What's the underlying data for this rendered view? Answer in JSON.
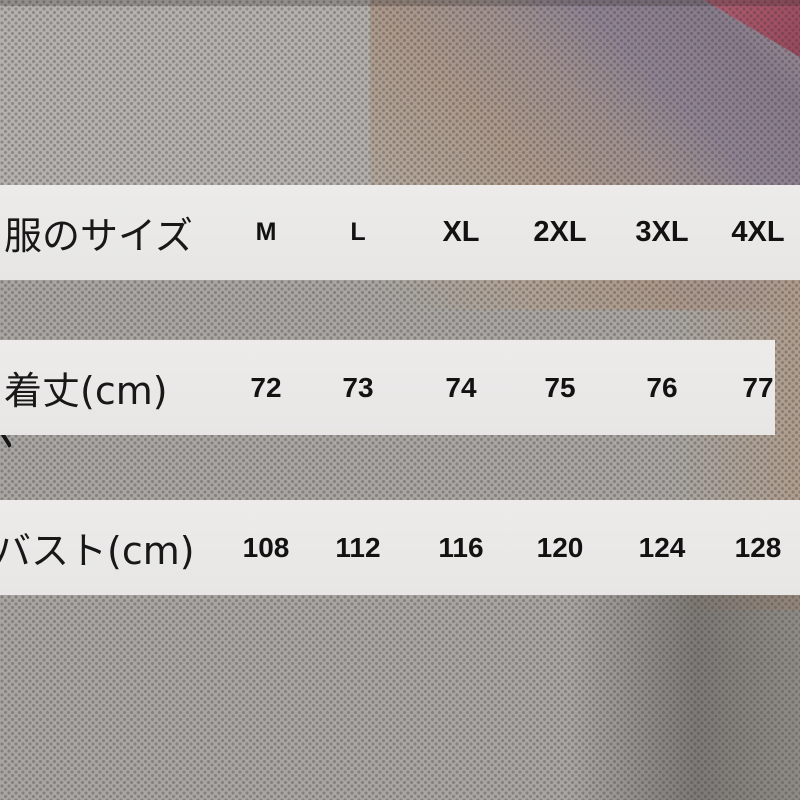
{
  "table": {
    "rows": [
      {
        "header": "服のサイズ",
        "values": [
          "M",
          "L",
          "XL",
          "2XL",
          "3XL",
          "4XL"
        ]
      },
      {
        "header": "着丈(cm)",
        "values": [
          "72",
          "73",
          "74",
          "75",
          "76",
          "77"
        ]
      },
      {
        "header": "バスト(cm)",
        "values": [
          "108",
          "112",
          "116",
          "120",
          "124",
          "128"
        ]
      }
    ]
  },
  "chart_data": {
    "type": "table",
    "columns": [
      "服のサイズ",
      "M",
      "L",
      "XL",
      "2XL",
      "3XL",
      "4XL"
    ],
    "rows": [
      [
        "着丈(cm)",
        72,
        73,
        74,
        75,
        76,
        77
      ],
      [
        "バスト(cm)",
        108,
        112,
        116,
        120,
        124,
        128
      ]
    ],
    "title": "服のサイズ",
    "legend_position": "none",
    "grid": false
  },
  "colors": {
    "band_bg": "#e9e9e9",
    "text": "#141414",
    "fabric_base": "#a9a7a4",
    "fabric_highlight": "#b5b3b0",
    "fabric_dot": "#3a3530",
    "pink_fabric": "#a45166",
    "purple_fabric": "#8d8193",
    "tan_fabric": "#b19e8e",
    "shadow": "#5a534e"
  }
}
